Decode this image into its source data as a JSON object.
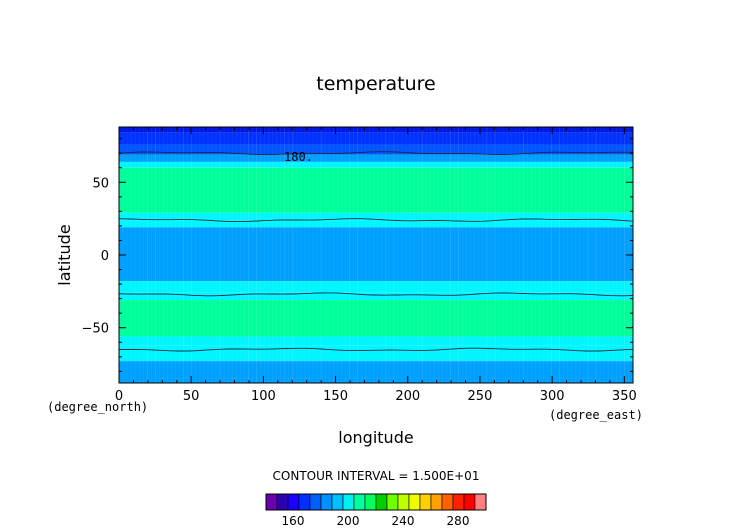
{
  "chart_data": {
    "type": "heatmap",
    "title": "temperature",
    "xlabel": "longitude",
    "ylabel": "latitude",
    "x_unit": "(degree_east)",
    "y_unit": "(degree_north)",
    "xlim": [
      0,
      356
    ],
    "ylim": [
      -88,
      88
    ],
    "x_ticks": [
      0,
      50,
      100,
      150,
      200,
      250,
      300,
      350
    ],
    "y_ticks": [
      50,
      0,
      -50
    ],
    "y_tick_labels": [
      "50",
      "0",
      "−50"
    ],
    "contour_interval_text": "CONTOUR INTERVAL = 1.500E+01",
    "contour_label": "180.",
    "bands_by_latitude": [
      {
        "from": 88,
        "to": 84,
        "value": 165
      },
      {
        "from": 84,
        "to": 76,
        "value": 172
      },
      {
        "from": 76,
        "to": 69,
        "value": 180
      },
      {
        "from": 69,
        "to": 64,
        "value": 195
      },
      {
        "from": 64,
        "to": 60,
        "value": 210
      },
      {
        "from": 60,
        "to": 29,
        "value": 225
      },
      {
        "from": 29,
        "to": 24,
        "value": 210
      },
      {
        "from": 24,
        "to": 19,
        "value": 210
      },
      {
        "from": 19,
        "to": -18,
        "value": 195
      },
      {
        "from": -18,
        "to": -26,
        "value": 210
      },
      {
        "from": -26,
        "to": -31,
        "value": 210
      },
      {
        "from": -31,
        "to": -56,
        "value": 225
      },
      {
        "from": -56,
        "to": -62,
        "value": 210
      },
      {
        "from": -62,
        "to": -73,
        "value": 210
      },
      {
        "from": -73,
        "to": -88,
        "value": 195
      }
    ],
    "contour_lines_lat": [
      70,
      24,
      -27,
      -65
    ],
    "colorbar": {
      "colors": [
        "#6a00b0",
        "#2a00b0",
        "#1a00ff",
        "#0030ff",
        "#0060ff",
        "#0090ff",
        "#00c0ff",
        "#00f0f0",
        "#00ffa0",
        "#00ff60",
        "#00d000",
        "#70ff00",
        "#c0ff00",
        "#f0ff00",
        "#ffd000",
        "#ffa000",
        "#ff6000",
        "#ff2000",
        "#ff0000",
        "#ff8080"
      ],
      "ticks": [
        "160",
        "200",
        "240",
        "280"
      ]
    },
    "colors": {
      "200": "#00a6ff",
      "210": "#00f5ff",
      "225": "#00ff9b",
      "195": "#00a0ff",
      "180": "#0055ff",
      "172": "#0033ff",
      "165": "#0018e0"
    }
  }
}
